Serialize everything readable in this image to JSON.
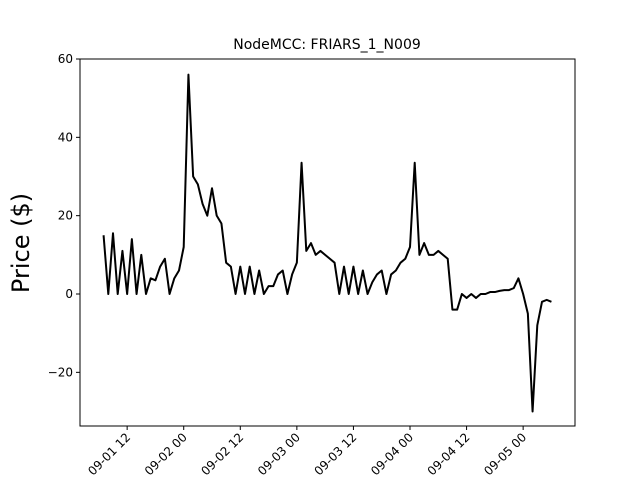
{
  "chart_data": {
    "type": "line",
    "title": "NodeMCC: FRIARS_1_N009",
    "y_label": "Price ($)",
    "x": [
      "09-01 07",
      "09-01 08",
      "09-01 09",
      "09-01 10",
      "09-01 11",
      "09-01 12",
      "09-01 13",
      "09-01 14",
      "09-01 15",
      "09-01 16",
      "09-01 17",
      "09-01 18",
      "09-01 19",
      "09-01 20",
      "09-01 21",
      "09-01 22",
      "09-01 23",
      "09-02 00",
      "09-02 01",
      "09-02 02",
      "09-02 03",
      "09-02 04",
      "09-02 05",
      "09-02 06",
      "09-02 07",
      "09-02 08",
      "09-02 09",
      "09-02 10",
      "09-02 11",
      "09-02 12",
      "09-02 13",
      "09-02 14",
      "09-02 15",
      "09-02 16",
      "09-02 17",
      "09-02 18",
      "09-02 19",
      "09-02 20",
      "09-02 21",
      "09-02 22",
      "09-02 23",
      "09-03 00",
      "09-03 01",
      "09-03 02",
      "09-03 03",
      "09-03 04",
      "09-03 05",
      "09-03 06",
      "09-03 07",
      "09-03 08",
      "09-03 09",
      "09-03 10",
      "09-03 11",
      "09-03 12",
      "09-03 13",
      "09-03 14",
      "09-03 15",
      "09-03 16",
      "09-03 17",
      "09-03 18",
      "09-03 19",
      "09-03 20",
      "09-03 21",
      "09-03 22",
      "09-03 23",
      "09-04 00",
      "09-04 01",
      "09-04 02",
      "09-04 03",
      "09-04 04",
      "09-04 05",
      "09-04 06",
      "09-04 07",
      "09-04 08",
      "09-04 09",
      "09-04 10",
      "09-04 11",
      "09-04 12",
      "09-04 13",
      "09-04 14",
      "09-04 15",
      "09-04 16",
      "09-04 17",
      "09-04 18",
      "09-04 19",
      "09-04 20",
      "09-04 21",
      "09-04 22",
      "09-04 23",
      "09-05 00",
      "09-05 01",
      "09-05 02",
      "09-05 03",
      "09-05 04",
      "09-05 05",
      "09-05 06"
    ],
    "series": [
      {
        "name": "Price",
        "color": "#000000",
        "values": [
          15,
          0,
          15.5,
          0,
          11,
          0,
          14,
          0,
          10,
          0,
          4,
          3.5,
          7,
          9,
          0,
          4,
          6,
          12,
          56,
          30,
          28,
          23,
          20,
          27,
          20,
          18,
          8,
          7,
          0,
          7,
          0,
          7,
          0,
          6,
          0,
          2,
          2,
          5,
          6,
          0,
          5,
          8,
          33.5,
          11,
          13,
          10,
          11,
          10,
          9,
          8,
          0,
          7,
          0,
          7,
          0,
          6,
          0,
          3,
          5,
          6,
          0,
          5,
          6,
          8,
          9,
          12,
          33.5,
          10,
          13,
          10,
          10,
          11,
          10,
          9,
          -4,
          -4,
          0,
          -1,
          0,
          -1,
          0,
          0,
          0.5,
          0.5,
          0.8,
          1,
          1,
          1.5,
          4,
          0,
          -5,
          -30,
          -8,
          -2,
          -1.5,
          -2
        ]
      }
    ],
    "xlim": [
      "09-01 02",
      "09-05 11"
    ],
    "xticks": [
      "09-01 12",
      "09-02 00",
      "09-02 12",
      "09-03 00",
      "09-03 12",
      "09-04 00",
      "09-04 12",
      "09-05 00"
    ],
    "ylim": [
      -33.7,
      60
    ],
    "yticks": [
      {
        "value": -20,
        "label": "−20"
      },
      0,
      20,
      40,
      60
    ]
  }
}
